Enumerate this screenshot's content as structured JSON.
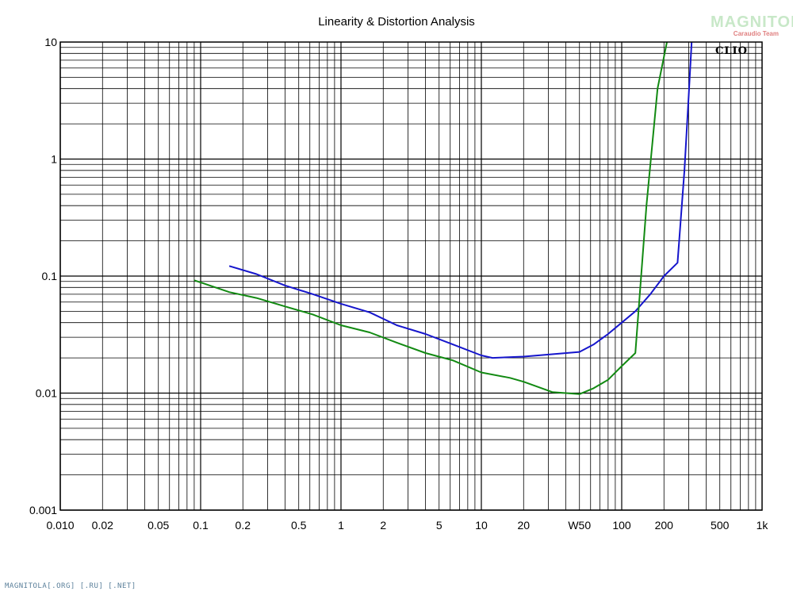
{
  "chart_data": {
    "type": "line",
    "title": "Linearity & Distortion Analysis",
    "x_scale": "log",
    "y_scale": "log",
    "xlim": [
      0.01,
      1000
    ],
    "ylim": [
      0.001,
      10
    ],
    "grid": true,
    "x_tick_labels": [
      {
        "value": 0.01,
        "label": "0.010"
      },
      {
        "value": 0.02,
        "label": "0.02"
      },
      {
        "value": 0.05,
        "label": "0.05"
      },
      {
        "value": 0.1,
        "label": "0.1"
      },
      {
        "value": 0.2,
        "label": "0.2"
      },
      {
        "value": 0.5,
        "label": "0.5"
      },
      {
        "value": 1,
        "label": "1"
      },
      {
        "value": 2,
        "label": "2"
      },
      {
        "value": 5,
        "label": "5"
      },
      {
        "value": 10,
        "label": "10"
      },
      {
        "value": 20,
        "label": "20"
      },
      {
        "value": 50,
        "label": "W50"
      },
      {
        "value": 100,
        "label": "100"
      },
      {
        "value": 200,
        "label": "200"
      },
      {
        "value": 500,
        "label": "500"
      },
      {
        "value": 1000,
        "label": "1k"
      }
    ],
    "y_tick_labels": [
      {
        "value": 10,
        "label": "10"
      },
      {
        "value": 1,
        "label": "1"
      },
      {
        "value": 0.1,
        "label": "0.1"
      },
      {
        "value": 0.01,
        "label": "0.01"
      },
      {
        "value": 0.001,
        "label": "0.001"
      }
    ],
    "series": [
      {
        "color": "#1515cc",
        "points": [
          [
            0.16,
            0.122
          ],
          [
            0.25,
            0.104
          ],
          [
            0.4,
            0.083
          ],
          [
            0.63,
            0.07
          ],
          [
            1,
            0.058
          ],
          [
            1.6,
            0.049
          ],
          [
            2.5,
            0.038
          ],
          [
            4,
            0.032
          ],
          [
            6.3,
            0.026
          ],
          [
            10,
            0.021
          ],
          [
            12,
            0.02
          ],
          [
            20,
            0.0205
          ],
          [
            32,
            0.0215
          ],
          [
            50,
            0.0225
          ],
          [
            63,
            0.026
          ],
          [
            80,
            0.032
          ],
          [
            100,
            0.04
          ],
          [
            125,
            0.05
          ],
          [
            160,
            0.07
          ],
          [
            200,
            0.1
          ],
          [
            250,
            0.13
          ],
          [
            280,
            0.8
          ],
          [
            300,
            3.5
          ],
          [
            315,
            10
          ]
        ]
      },
      {
        "color": "#128a12",
        "points": [
          [
            0.09,
            0.092
          ],
          [
            0.16,
            0.073
          ],
          [
            0.25,
            0.065
          ],
          [
            0.4,
            0.055
          ],
          [
            0.63,
            0.047
          ],
          [
            1,
            0.038
          ],
          [
            1.6,
            0.033
          ],
          [
            2.5,
            0.027
          ],
          [
            4,
            0.022
          ],
          [
            6.3,
            0.019
          ],
          [
            10,
            0.015
          ],
          [
            16,
            0.0135
          ],
          [
            20,
            0.0125
          ],
          [
            32,
            0.0102
          ],
          [
            50,
            0.0098
          ],
          [
            63,
            0.011
          ],
          [
            80,
            0.013
          ],
          [
            100,
            0.017
          ],
          [
            125,
            0.022
          ],
          [
            150,
            0.4
          ],
          [
            180,
            4.0
          ],
          [
            210,
            10
          ]
        ]
      }
    ]
  },
  "brand": {
    "name": "MAGNITOLA",
    "sub": "Caraudio Team"
  },
  "watermark": "CLIO",
  "footer": "MAGNITOLA[.ORG] [.RU] [.NET]"
}
